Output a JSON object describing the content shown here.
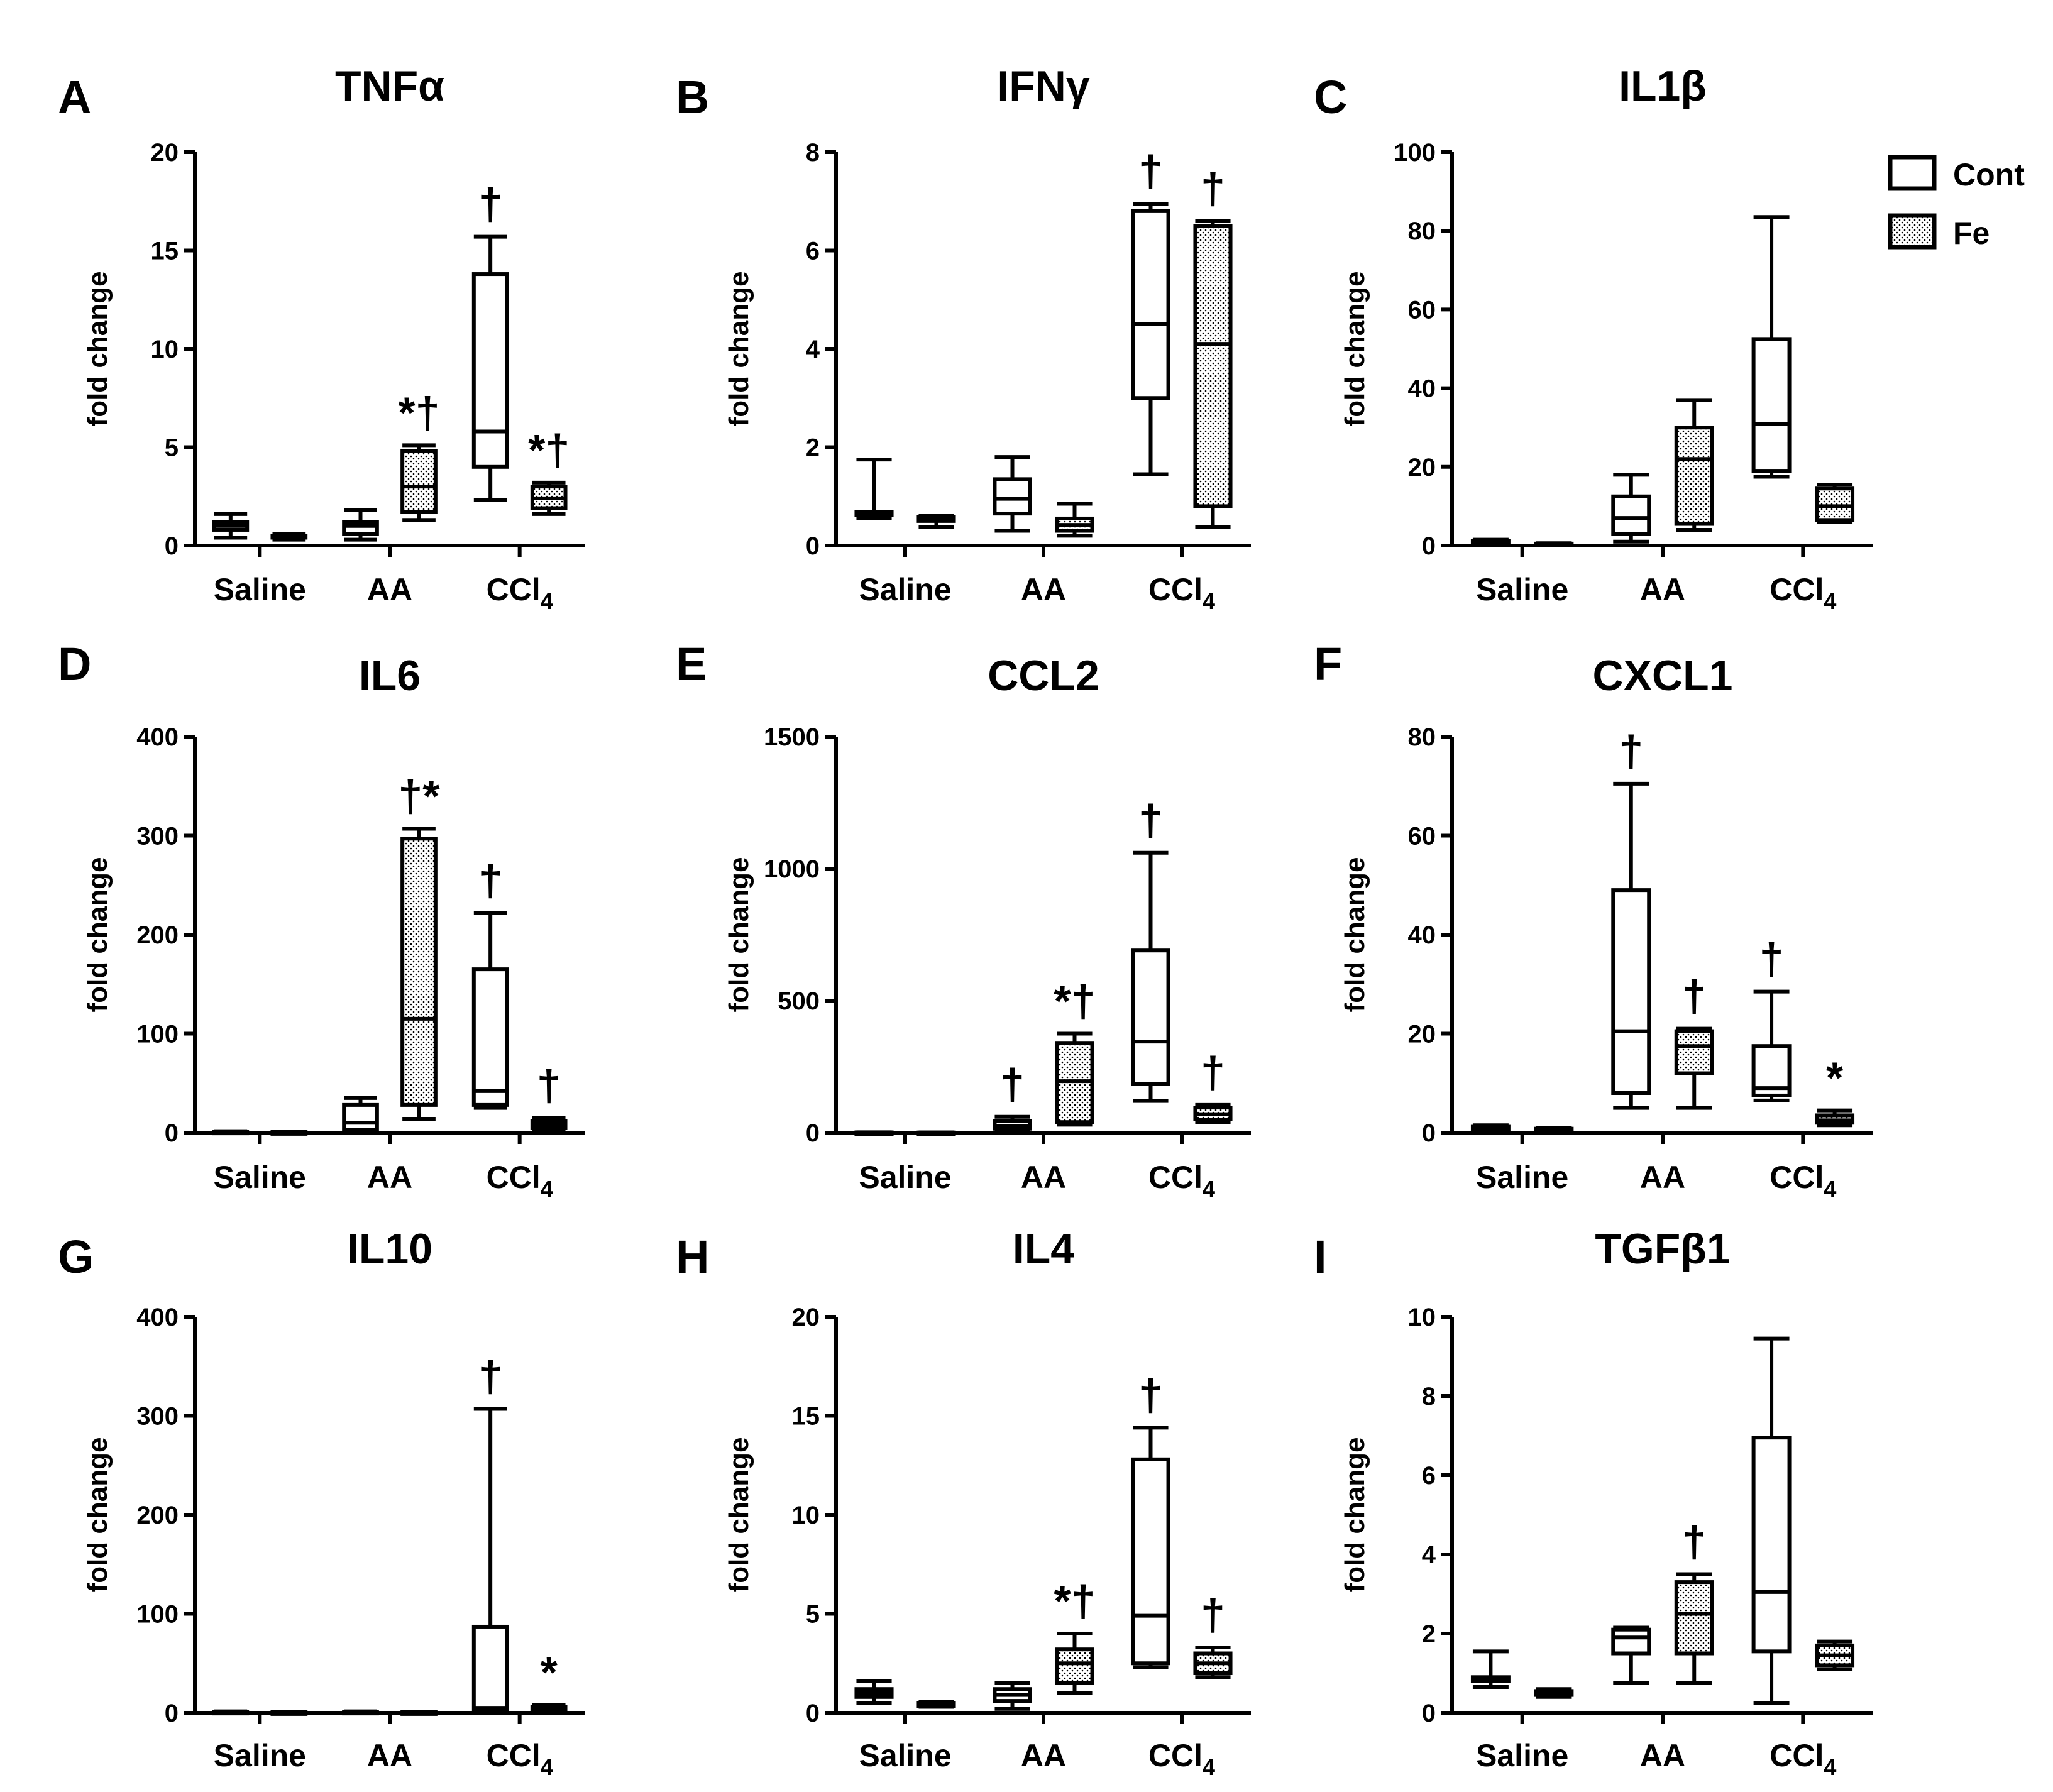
{
  "legend": {
    "items": [
      {
        "label": "Cont",
        "fill": "none"
      },
      {
        "label": "Fe",
        "fill": "dots"
      }
    ]
  },
  "chart_data": [
    {
      "id": "A",
      "title": "TNFα",
      "type": "box",
      "ylabel": "fold change",
      "ylim": [
        0,
        20
      ],
      "yticks": [
        0,
        5,
        10,
        15,
        20
      ],
      "categories": [
        "Saline",
        "AA",
        "CCl4"
      ],
      "boxes": [
        {
          "category": "Saline",
          "group": "Cont",
          "min": 0.4,
          "q1": 0.8,
          "median": 1.0,
          "q3": 1.2,
          "max": 1.6
        },
        {
          "category": "Saline",
          "group": "Fe",
          "min": 0.3,
          "q1": 0.4,
          "median": 0.45,
          "q3": 0.5,
          "max": 0.6
        },
        {
          "category": "AA",
          "group": "Cont",
          "min": 0.3,
          "q1": 0.6,
          "median": 1.0,
          "q3": 1.2,
          "max": 1.8
        },
        {
          "category": "AA",
          "group": "Fe",
          "min": 1.3,
          "q1": 1.7,
          "median": 3.0,
          "q3": 4.8,
          "max": 5.1
        },
        {
          "category": "CCl4",
          "group": "Cont",
          "min": 2.3,
          "q1": 4.0,
          "median": 5.8,
          "q3": 13.8,
          "max": 15.7
        },
        {
          "category": "CCl4",
          "group": "Fe",
          "min": 1.6,
          "q1": 1.9,
          "median": 2.4,
          "q3": 3.0,
          "max": 3.2
        }
      ],
      "annotations": [
        {
          "category": "AA",
          "group": "Fe",
          "text": "*†"
        },
        {
          "category": "CCl4",
          "group": "Cont",
          "text": "†"
        },
        {
          "category": "CCl4",
          "group": "Fe",
          "text": "*†"
        }
      ]
    },
    {
      "id": "B",
      "title": "IFNγ",
      "type": "box",
      "ylabel": "fold change",
      "ylim": [
        0,
        8
      ],
      "yticks": [
        0,
        2,
        4,
        6,
        8
      ],
      "categories": [
        "Saline",
        "AA",
        "CCl4"
      ],
      "boxes": [
        {
          "category": "Saline",
          "group": "Cont",
          "min": 0.55,
          "q1": 0.62,
          "median": 0.65,
          "q3": 0.68,
          "max": 1.75
        },
        {
          "category": "Saline",
          "group": "Fe",
          "min": 0.38,
          "q1": 0.5,
          "median": 0.55,
          "q3": 0.58,
          "max": 0.6
        },
        {
          "category": "AA",
          "group": "Cont",
          "min": 0.3,
          "q1": 0.65,
          "median": 0.95,
          "q3": 1.35,
          "max": 1.8
        },
        {
          "category": "AA",
          "group": "Fe",
          "min": 0.2,
          "q1": 0.3,
          "median": 0.42,
          "q3": 0.55,
          "max": 0.85
        },
        {
          "category": "CCl4",
          "group": "Cont",
          "min": 1.45,
          "q1": 3.0,
          "median": 4.5,
          "q3": 6.8,
          "max": 6.95
        },
        {
          "category": "CCl4",
          "group": "Fe",
          "min": 0.38,
          "q1": 0.8,
          "median": 4.1,
          "q3": 6.5,
          "max": 6.6
        }
      ],
      "annotations": [
        {
          "category": "CCl4",
          "group": "Cont",
          "text": "†"
        },
        {
          "category": "CCl4",
          "group": "Fe",
          "text": "†"
        }
      ]
    },
    {
      "id": "C",
      "title": "IL1β",
      "type": "box",
      "ylabel": "fold change",
      "ylim": [
        0,
        100
      ],
      "yticks": [
        0,
        20,
        40,
        60,
        80,
        100
      ],
      "categories": [
        "Saline",
        "AA",
        "CCl4"
      ],
      "boxes": [
        {
          "category": "Saline",
          "group": "Cont",
          "min": 0.5,
          "q1": 0.8,
          "median": 1.0,
          "q3": 1.2,
          "max": 1.5
        },
        {
          "category": "Saline",
          "group": "Fe",
          "min": 0.2,
          "q1": 0.3,
          "median": 0.4,
          "q3": 0.5,
          "max": 0.6
        },
        {
          "category": "AA",
          "group": "Cont",
          "min": 1.0,
          "q1": 3.0,
          "median": 7.0,
          "q3": 12.5,
          "max": 18.0
        },
        {
          "category": "AA",
          "group": "Fe",
          "min": 4.0,
          "q1": 5.5,
          "median": 22.0,
          "q3": 30.0,
          "max": 37.0
        },
        {
          "category": "CCl4",
          "group": "Cont",
          "min": 17.5,
          "q1": 19.0,
          "median": 31.0,
          "q3": 52.5,
          "max": 83.5
        },
        {
          "category": "CCl4",
          "group": "Fe",
          "min": 6.0,
          "q1": 6.5,
          "median": 10.0,
          "q3": 14.5,
          "max": 15.5
        }
      ],
      "annotations": []
    },
    {
      "id": "D",
      "title": "IL6",
      "type": "box",
      "ylabel": "fold change",
      "ylim": [
        0,
        400
      ],
      "yticks": [
        0,
        100,
        200,
        300,
        400
      ],
      "categories": [
        "Saline",
        "AA",
        "CCl4"
      ],
      "boxes": [
        {
          "category": "Saline",
          "group": "Cont",
          "min": 0.5,
          "q1": 0.8,
          "median": 1.0,
          "q3": 1.2,
          "max": 1.5
        },
        {
          "category": "Saline",
          "group": "Fe",
          "min": 0.3,
          "q1": 0.5,
          "median": 0.6,
          "q3": 0.7,
          "max": 0.8
        },
        {
          "category": "AA",
          "group": "Cont",
          "min": 1,
          "q1": 3,
          "median": 10,
          "q3": 28,
          "max": 35
        },
        {
          "category": "AA",
          "group": "Fe",
          "min": 14,
          "q1": 28,
          "median": 115,
          "q3": 297,
          "max": 307
        },
        {
          "category": "CCl4",
          "group": "Cont",
          "min": 25,
          "q1": 28,
          "median": 42,
          "q3": 165,
          "max": 222
        },
        {
          "category": "CCl4",
          "group": "Fe",
          "min": 3,
          "q1": 5,
          "median": 8,
          "q3": 12,
          "max": 15
        }
      ],
      "annotations": [
        {
          "category": "AA",
          "group": "Fe",
          "text": "†*"
        },
        {
          "category": "CCl4",
          "group": "Cont",
          "text": "†"
        },
        {
          "category": "CCl4",
          "group": "Fe",
          "text": "†"
        }
      ]
    },
    {
      "id": "E",
      "title": "CCL2",
      "type": "box",
      "ylabel": "fold change",
      "ylim": [
        0,
        1500
      ],
      "yticks": [
        0,
        500,
        1000,
        1500
      ],
      "categories": [
        "Saline",
        "AA",
        "CCl4"
      ],
      "boxes": [
        {
          "category": "Saline",
          "group": "Cont",
          "min": 0.5,
          "q1": 0.8,
          "median": 1.0,
          "q3": 1.2,
          "max": 1.5
        },
        {
          "category": "Saline",
          "group": "Fe",
          "min": 0.3,
          "q1": 0.5,
          "median": 0.6,
          "q3": 0.7,
          "max": 0.8
        },
        {
          "category": "AA",
          "group": "Cont",
          "min": 10,
          "q1": 15,
          "median": 25,
          "q3": 45,
          "max": 60
        },
        {
          "category": "AA",
          "group": "Fe",
          "min": 30,
          "q1": 40,
          "median": 195,
          "q3": 340,
          "max": 375
        },
        {
          "category": "CCl4",
          "group": "Cont",
          "min": 120,
          "q1": 185,
          "median": 345,
          "q3": 690,
          "max": 1060
        },
        {
          "category": "CCl4",
          "group": "Fe",
          "min": 40,
          "q1": 50,
          "median": 70,
          "q3": 95,
          "max": 105
        }
      ],
      "annotations": [
        {
          "category": "AA",
          "group": "Cont",
          "text": "†"
        },
        {
          "category": "AA",
          "group": "Fe",
          "text": "*†"
        },
        {
          "category": "CCl4",
          "group": "Cont",
          "text": "†"
        },
        {
          "category": "CCl4",
          "group": "Fe",
          "text": "†"
        }
      ]
    },
    {
      "id": "F",
      "title": "CXCL1",
      "type": "box",
      "ylabel": "fold change",
      "ylim": [
        0,
        80
      ],
      "yticks": [
        0,
        20,
        40,
        60,
        80
      ],
      "categories": [
        "Saline",
        "AA",
        "CCl4"
      ],
      "boxes": [
        {
          "category": "Saline",
          "group": "Cont",
          "min": 0.5,
          "q1": 0.7,
          "median": 1.0,
          "q3": 1.2,
          "max": 1.5
        },
        {
          "category": "Saline",
          "group": "Fe",
          "min": 0.3,
          "q1": 0.5,
          "median": 0.6,
          "q3": 0.8,
          "max": 1.0
        },
        {
          "category": "AA",
          "group": "Cont",
          "min": 5,
          "q1": 8,
          "median": 20.5,
          "q3": 49,
          "max": 70.5
        },
        {
          "category": "AA",
          "group": "Fe",
          "min": 5,
          "q1": 12,
          "median": 17.5,
          "q3": 20.5,
          "max": 21
        },
        {
          "category": "CCl4",
          "group": "Cont",
          "min": 6.5,
          "q1": 7.5,
          "median": 9,
          "q3": 17.5,
          "max": 28.5
        },
        {
          "category": "CCl4",
          "group": "Fe",
          "min": 1.5,
          "q1": 2,
          "median": 2.5,
          "q3": 3.5,
          "max": 4.5
        }
      ],
      "annotations": [
        {
          "category": "AA",
          "group": "Cont",
          "text": "†"
        },
        {
          "category": "AA",
          "group": "Fe",
          "text": "†"
        },
        {
          "category": "CCl4",
          "group": "Cont",
          "text": "†"
        },
        {
          "category": "CCl4",
          "group": "Fe",
          "text": "*"
        }
      ]
    },
    {
      "id": "G",
      "title": "IL10",
      "type": "box",
      "ylabel": "fold change",
      "ylim": [
        0,
        400
      ],
      "yticks": [
        0,
        100,
        200,
        300,
        400
      ],
      "categories": [
        "Saline",
        "AA",
        "CCl4"
      ],
      "boxes": [
        {
          "category": "Saline",
          "group": "Cont",
          "min": 0.5,
          "q1": 0.8,
          "median": 1.0,
          "q3": 1.2,
          "max": 1.5
        },
        {
          "category": "Saline",
          "group": "Fe",
          "min": 0.3,
          "q1": 0.5,
          "median": 0.6,
          "q3": 0.7,
          "max": 0.8
        },
        {
          "category": "AA",
          "group": "Cont",
          "min": 0.5,
          "q1": 0.8,
          "median": 1.0,
          "q3": 1.2,
          "max": 1.5
        },
        {
          "category": "AA",
          "group": "Fe",
          "min": 0.3,
          "q1": 0.5,
          "median": 0.6,
          "q3": 0.7,
          "max": 0.8
        },
        {
          "category": "CCl4",
          "group": "Cont",
          "min": 1,
          "q1": 2,
          "median": 5,
          "q3": 87,
          "max": 307
        },
        {
          "category": "CCl4",
          "group": "Fe",
          "min": 1,
          "q1": 2,
          "median": 3,
          "q3": 6,
          "max": 8
        }
      ],
      "annotations": [
        {
          "category": "CCl4",
          "group": "Cont",
          "text": "†"
        },
        {
          "category": "CCl4",
          "group": "Fe",
          "text": "*"
        }
      ]
    },
    {
      "id": "H",
      "title": "IL4",
      "type": "box",
      "ylabel": "fold change",
      "ylim": [
        0,
        20
      ],
      "yticks": [
        0,
        5,
        10,
        15,
        20
      ],
      "categories": [
        "Saline",
        "AA",
        "CCl4"
      ],
      "boxes": [
        {
          "category": "Saline",
          "group": "Cont",
          "min": 0.5,
          "q1": 0.8,
          "median": 1.0,
          "q3": 1.2,
          "max": 1.6
        },
        {
          "category": "Saline",
          "group": "Fe",
          "min": 0.3,
          "q1": 0.35,
          "median": 0.45,
          "q3": 0.5,
          "max": 0.55
        },
        {
          "category": "AA",
          "group": "Cont",
          "min": 0.2,
          "q1": 0.6,
          "median": 0.9,
          "q3": 1.2,
          "max": 1.5
        },
        {
          "category": "AA",
          "group": "Fe",
          "min": 1.0,
          "q1": 1.5,
          "median": 2.5,
          "q3": 3.2,
          "max": 4.0
        },
        {
          "category": "CCl4",
          "group": "Cont",
          "min": 2.3,
          "q1": 2.5,
          "median": 4.9,
          "q3": 12.8,
          "max": 14.4
        },
        {
          "category": "CCl4",
          "group": "Fe",
          "min": 1.8,
          "q1": 2.0,
          "median": 2.5,
          "q3": 3.0,
          "max": 3.3
        }
      ],
      "annotations": [
        {
          "category": "AA",
          "group": "Fe",
          "text": "*†"
        },
        {
          "category": "CCl4",
          "group": "Cont",
          "text": "†"
        },
        {
          "category": "CCl4",
          "group": "Fe",
          "text": "†"
        }
      ]
    },
    {
      "id": "I",
      "title": "TGFβ1",
      "type": "box",
      "ylabel": "fold change",
      "ylim": [
        0,
        10
      ],
      "yticks": [
        0,
        2,
        4,
        6,
        8,
        10
      ],
      "categories": [
        "Saline",
        "AA",
        "CCl4"
      ],
      "boxes": [
        {
          "category": "Saline",
          "group": "Cont",
          "min": 0.65,
          "q1": 0.8,
          "median": 0.85,
          "q3": 0.9,
          "max": 1.55
        },
        {
          "category": "Saline",
          "group": "Fe",
          "min": 0.4,
          "q1": 0.45,
          "median": 0.5,
          "q3": 0.55,
          "max": 0.6
        },
        {
          "category": "AA",
          "group": "Cont",
          "min": 0.75,
          "q1": 1.5,
          "median": 1.9,
          "q3": 2.1,
          "max": 2.15
        },
        {
          "category": "AA",
          "group": "Fe",
          "min": 0.75,
          "q1": 1.5,
          "median": 2.5,
          "q3": 3.3,
          "max": 3.5
        },
        {
          "category": "CCl4",
          "group": "Cont",
          "min": 0.25,
          "q1": 1.55,
          "median": 3.05,
          "q3": 6.95,
          "max": 9.45
        },
        {
          "category": "CCl4",
          "group": "Fe",
          "min": 1.1,
          "q1": 1.2,
          "median": 1.45,
          "q3": 1.7,
          "max": 1.8
        }
      ],
      "annotations": [
        {
          "category": "AA",
          "group": "Fe",
          "text": "†"
        }
      ]
    }
  ]
}
